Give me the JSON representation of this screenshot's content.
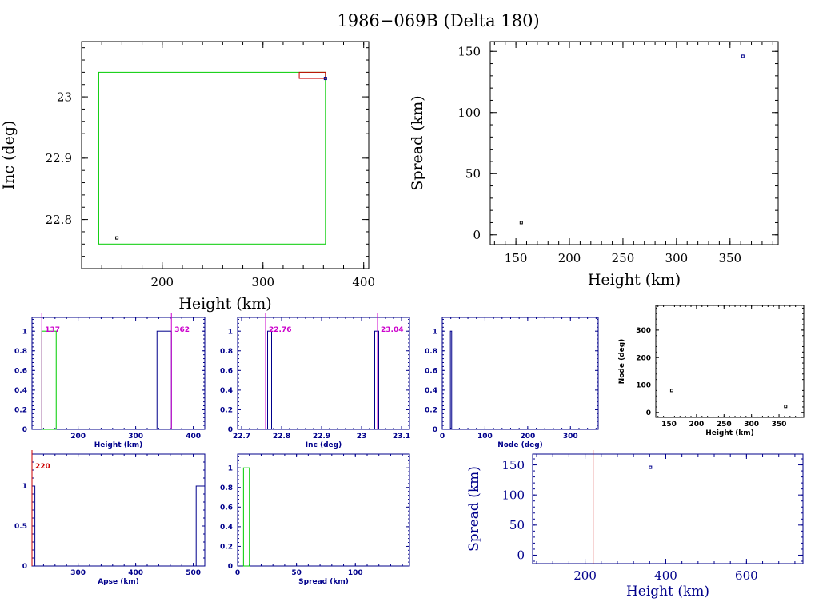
{
  "title": "1986−069B (Delta 180)",
  "colors": {
    "black": "#000000",
    "navy": "#00008b",
    "green": "#00cc00",
    "red": "#cc0000",
    "magenta": "#cc00cc",
    "blue": "#0000cc"
  },
  "chart_data": [
    {
      "id": "inc-height",
      "type": "scatter",
      "style": "large",
      "color": "black",
      "xlabel": "Height (km)",
      "ylabel": "Inc (deg)",
      "xlim": [
        120,
        405
      ],
      "ylim": [
        22.72,
        23.09
      ],
      "xticks": [
        200,
        300,
        400
      ],
      "xticklabels": [
        "200",
        "300",
        "400"
      ],
      "yticks": [
        22.8,
        22.9,
        23
      ],
      "yticklabels": [
        "22.8",
        "22.9",
        "23"
      ],
      "points": [
        {
          "x": 155,
          "y": 22.77,
          "color": "black"
        },
        {
          "x": 362,
          "y": 23.03,
          "color": "navy"
        }
      ],
      "rects": [
        {
          "x0": 137,
          "x1": 362,
          "y0": 22.76,
          "y1": 23.04,
          "color": "green"
        },
        {
          "x0": 336,
          "x1": 362,
          "y0": 23.03,
          "y1": 23.04,
          "color": "red"
        }
      ]
    },
    {
      "id": "spread-height",
      "type": "scatter",
      "style": "large",
      "color": "black",
      "xlabel": "Height (km)",
      "ylabel": "Spread (km)",
      "xlim": [
        126,
        395
      ],
      "ylim": [
        -8,
        158
      ],
      "xticks": [
        150,
        200,
        250,
        300,
        350
      ],
      "xticklabels": [
        "150",
        "200",
        "250",
        "300",
        "350"
      ],
      "yticks": [
        0,
        50,
        100,
        150
      ],
      "yticklabels": [
        "0",
        "50",
        "100",
        "150"
      ],
      "points": [
        {
          "x": 155,
          "y": 10,
          "color": "black"
        },
        {
          "x": 362,
          "y": 146,
          "color": "navy"
        }
      ]
    },
    {
      "id": "hist-height",
      "type": "bar",
      "style": "small",
      "color": "navy",
      "xlabel": "Height (km)",
      "ylabel": "",
      "xlim": [
        120,
        420
      ],
      "ylim": [
        0,
        1.14
      ],
      "xticks": [
        200,
        300,
        400
      ],
      "xticklabels": [
        "200",
        "300",
        "400"
      ],
      "yticks": [
        0,
        0.2,
        0.4,
        0.6,
        0.8,
        1
      ],
      "yticklabels": [
        "0",
        "0.2",
        "0.4",
        "0.6",
        "0.8",
        "1"
      ],
      "bars": [
        {
          "x0": 137,
          "x1": 162,
          "value": 1,
          "color": "green"
        },
        {
          "x0": 337,
          "x1": 362,
          "value": 1,
          "color": "navy"
        }
      ],
      "vlines": [
        {
          "x": 137,
          "label": "137",
          "color": "magenta",
          "labelSide": "right"
        },
        {
          "x": 362,
          "label": "362",
          "color": "magenta",
          "labelSide": "right"
        }
      ]
    },
    {
      "id": "hist-inc",
      "type": "bar",
      "style": "small",
      "color": "navy",
      "xlabel": "Inc (deg)",
      "ylabel": "",
      "xlim": [
        22.69,
        23.12
      ],
      "ylim": [
        0,
        1.14
      ],
      "xticks": [
        22.7,
        22.8,
        22.9,
        23,
        23.1
      ],
      "xticklabels": [
        "22.7",
        "22.8",
        "22.9",
        "23",
        "23.1"
      ],
      "yticks": [
        0,
        0.2,
        0.4,
        0.6,
        0.8,
        1
      ],
      "yticklabels": [
        "0",
        "0.2",
        "0.4",
        "0.6",
        "0.8",
        "1"
      ],
      "bars": [
        {
          "x0": 22.765,
          "x1": 22.775,
          "value": 1,
          "color": "navy"
        },
        {
          "x0": 23.033,
          "x1": 23.043,
          "value": 1,
          "color": "navy"
        }
      ],
      "vlines": [
        {
          "x": 22.76,
          "label": "22.76",
          "color": "magenta",
          "labelSide": "right"
        },
        {
          "x": 23.04,
          "label": "23.04",
          "color": "magenta",
          "labelSide": "right"
        }
      ]
    },
    {
      "id": "hist-node",
      "type": "bar",
      "style": "small",
      "color": "navy",
      "xlabel": "Node (deg)",
      "ylabel": "",
      "xlim": [
        0,
        365
      ],
      "ylim": [
        0,
        1.14
      ],
      "xticks": [
        0,
        100,
        200,
        300
      ],
      "xticklabels": [
        "0",
        "100",
        "200",
        "300"
      ],
      "yticks": [
        0,
        0.2,
        0.4,
        0.6,
        0.8,
        1
      ],
      "yticklabels": [
        "0",
        "0.2",
        "0.4",
        "0.6",
        "0.8",
        "1"
      ],
      "bars": [
        {
          "x0": 19,
          "x1": 22,
          "value": 1,
          "color": "navy"
        }
      ]
    },
    {
      "id": "node-height",
      "type": "scatter",
      "style": "small",
      "color": "black",
      "xlabel": "Height (km)",
      "ylabel": "Node (deg)",
      "xlim": [
        126,
        395
      ],
      "ylim": [
        -18,
        390
      ],
      "xticks": [
        150,
        200,
        250,
        300,
        350
      ],
      "xticklabels": [
        "150",
        "200",
        "250",
        "300",
        "350"
      ],
      "yticks": [
        0,
        100,
        200,
        300
      ],
      "yticklabels": [
        "0",
        "100",
        "200",
        "300"
      ],
      "points": [
        {
          "x": 155,
          "y": 80,
          "color": "black"
        },
        {
          "x": 362,
          "y": 22,
          "color": "black"
        }
      ]
    },
    {
      "id": "hist-apse",
      "type": "bar",
      "style": "small",
      "color": "navy",
      "xlabel": "Apse (km)",
      "ylabel": "",
      "xlim": [
        220,
        520
      ],
      "ylim": [
        0,
        1.4
      ],
      "xticks": [
        300,
        400,
        500
      ],
      "xticklabels": [
        "300",
        "400",
        "500"
      ],
      "yticks": [
        0,
        0.5,
        1
      ],
      "yticklabels": [
        "0",
        "0.5",
        "1"
      ],
      "bars": [
        {
          "x0": 220,
          "x1": 225,
          "value": 1,
          "color": "navy"
        },
        {
          "x0": 505,
          "x1": 520,
          "value": 1,
          "color": "navy"
        }
      ],
      "vlines": [
        {
          "x": 220,
          "label": "220",
          "color": "red",
          "labelSide": "right"
        }
      ]
    },
    {
      "id": "hist-spread",
      "type": "bar",
      "style": "small",
      "color": "navy",
      "xlabel": "Spread (km)",
      "ylabel": "",
      "xlim": [
        0,
        146
      ],
      "ylim": [
        0,
        1.14
      ],
      "xticks": [
        0,
        50,
        100
      ],
      "xticklabels": [
        "0",
        "50",
        "100"
      ],
      "yticks": [
        0,
        0.2,
        0.4,
        0.6,
        0.8,
        1
      ],
      "yticklabels": [
        "0",
        "0.2",
        "0.4",
        "0.6",
        "0.8",
        "1"
      ],
      "bars": [
        {
          "x0": 5,
          "x1": 10,
          "value": 1,
          "color": "green"
        }
      ]
    },
    {
      "id": "spread-height-wide",
      "type": "scatter",
      "style": "medium",
      "color": "navy",
      "xlabel": "Height (km)",
      "ylabel": "Spread (km)",
      "xlim": [
        70,
        740
      ],
      "ylim": [
        -14,
        168
      ],
      "xticks": [
        200,
        400,
        600
      ],
      "xticklabels": [
        "200",
        "400",
        "600"
      ],
      "yticks": [
        0,
        50,
        100,
        150
      ],
      "yticklabels": [
        "0",
        "50",
        "100",
        "150"
      ],
      "points": [
        {
          "x": 362,
          "y": 146,
          "color": "navy"
        }
      ],
      "vlines": [
        {
          "x": 220,
          "label": "",
          "color": "red",
          "labelSide": "right"
        }
      ]
    }
  ]
}
